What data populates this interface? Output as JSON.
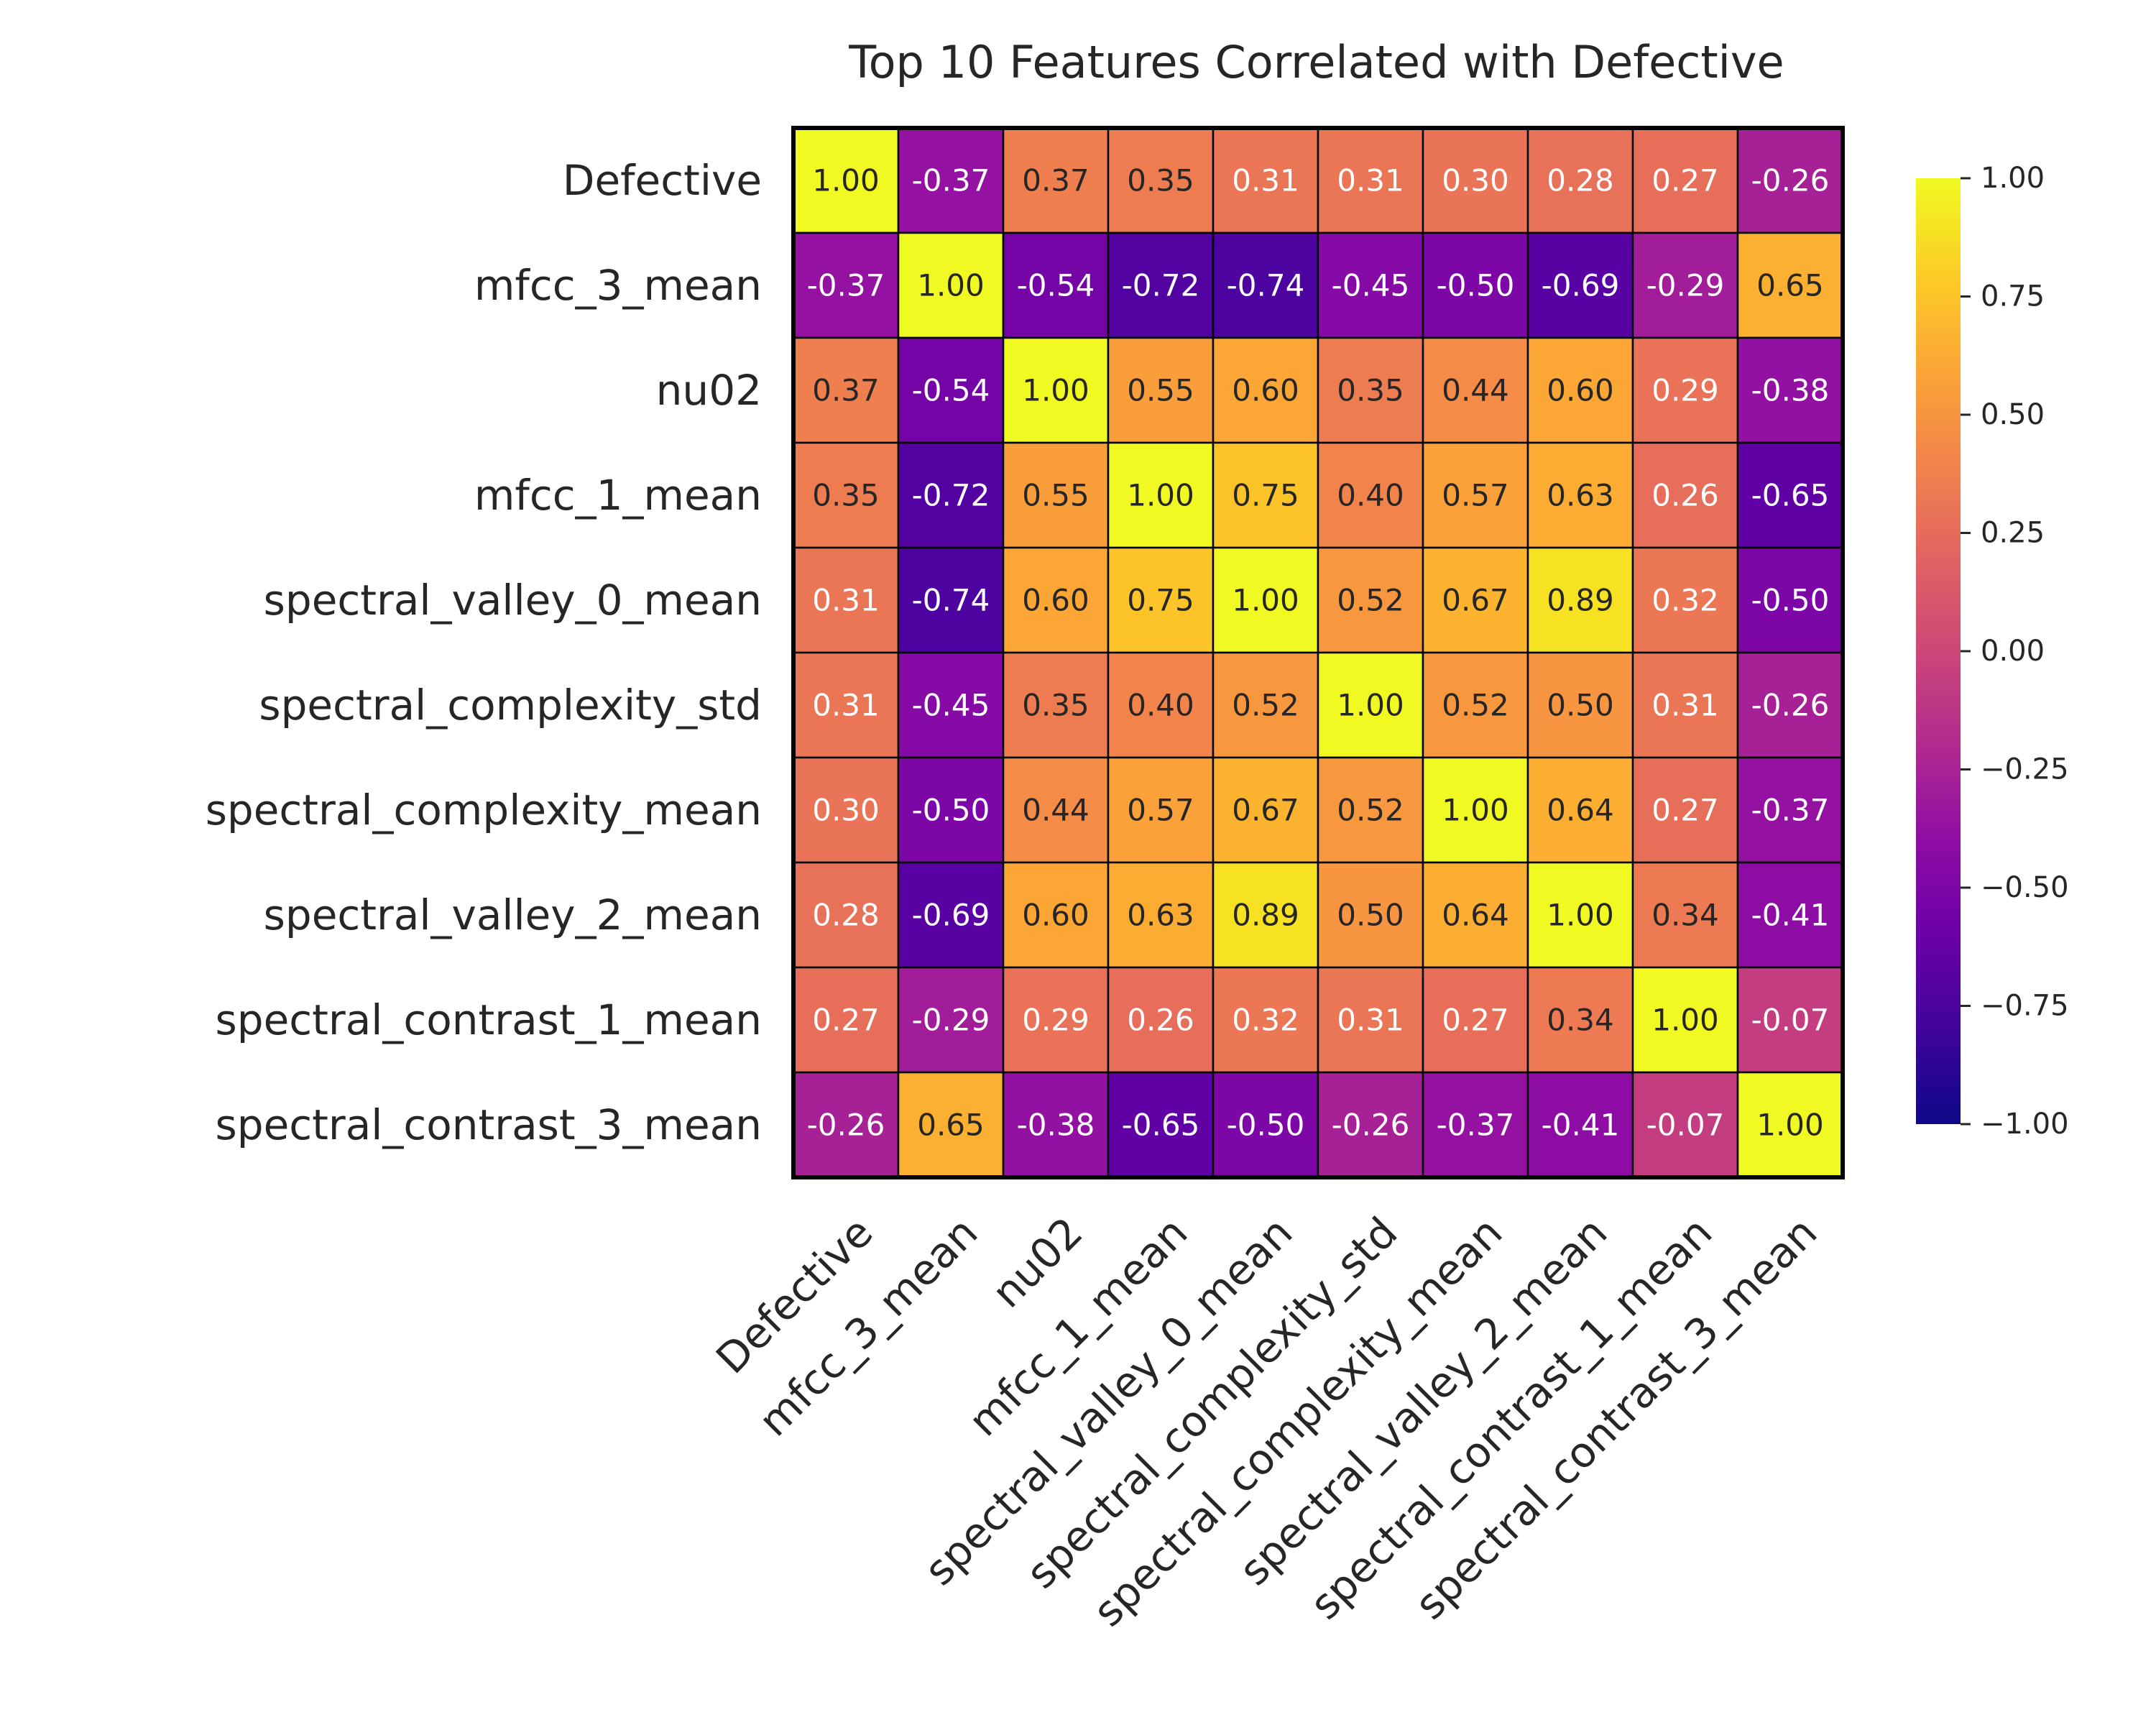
{
  "chart_data": {
    "type": "heatmap",
    "title": "Top 10 Features Correlated with Defective",
    "colormap": "plasma",
    "value_range": [
      -1.0,
      1.0
    ],
    "labels": [
      "Defective",
      "mfcc_3_mean",
      "nu02",
      "mfcc_1_mean",
      "spectral_valley_0_mean",
      "spectral_complexity_std",
      "spectral_complexity_mean",
      "spectral_valley_2_mean",
      "spectral_contrast_1_mean",
      "spectral_contrast_3_mean"
    ],
    "matrix": [
      [
        1.0,
        -0.37,
        0.37,
        0.35,
        0.31,
        0.31,
        0.3,
        0.28,
        0.27,
        -0.26
      ],
      [
        -0.37,
        1.0,
        -0.54,
        -0.72,
        -0.74,
        -0.45,
        -0.5,
        -0.69,
        -0.29,
        0.65
      ],
      [
        0.37,
        -0.54,
        1.0,
        0.55,
        0.6,
        0.35,
        0.44,
        0.6,
        0.29,
        -0.38
      ],
      [
        0.35,
        -0.72,
        0.55,
        1.0,
        0.75,
        0.4,
        0.57,
        0.63,
        0.26,
        -0.65
      ],
      [
        0.31,
        -0.74,
        0.6,
        0.75,
        1.0,
        0.52,
        0.67,
        0.89,
        0.32,
        -0.5
      ],
      [
        0.31,
        -0.45,
        0.35,
        0.4,
        0.52,
        1.0,
        0.52,
        0.5,
        0.31,
        -0.26
      ],
      [
        0.3,
        -0.5,
        0.44,
        0.57,
        0.67,
        0.52,
        1.0,
        0.64,
        0.27,
        -0.37
      ],
      [
        0.28,
        -0.69,
        0.6,
        0.63,
        0.89,
        0.5,
        0.64,
        1.0,
        0.34,
        -0.41
      ],
      [
        0.27,
        -0.29,
        0.29,
        0.26,
        0.32,
        0.31,
        0.27,
        0.34,
        1.0,
        -0.07
      ],
      [
        -0.26,
        0.65,
        -0.38,
        -0.65,
        -0.5,
        -0.26,
        -0.37,
        -0.41,
        -0.07,
        1.0
      ]
    ],
    "colorbar_ticks": [
      "1.00",
      "0.75",
      "0.50",
      "0.25",
      "0.00",
      "−0.25",
      "−0.50",
      "−0.75",
      "−1.00"
    ],
    "colorbar_tick_values": [
      1.0,
      0.75,
      0.5,
      0.25,
      0.0,
      -0.25,
      -0.5,
      -0.75,
      -1.0
    ]
  }
}
